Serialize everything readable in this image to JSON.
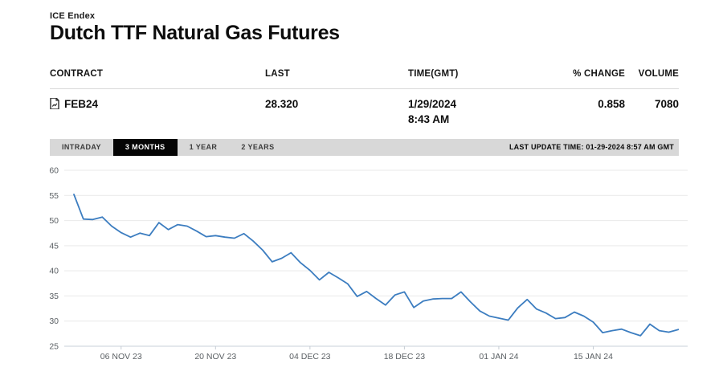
{
  "header": {
    "exchange": "ICE Endex",
    "title": "Dutch TTF Natural Gas Futures"
  },
  "table": {
    "columns": [
      "CONTRACT",
      "LAST",
      "TIME(GMT)",
      "% CHANGE",
      "VOLUME"
    ],
    "row": {
      "contract": "FEB24",
      "last": "28.320",
      "date": "1/29/2024",
      "time": "8:43 AM",
      "pct_change": "0.858",
      "volume": "7080"
    }
  },
  "tabs": {
    "items": [
      {
        "label": "INTRADAY",
        "selected": false
      },
      {
        "label": "3 MONTHS",
        "selected": true
      },
      {
        "label": "1 YEAR",
        "selected": false
      },
      {
        "label": "2 YEARS",
        "selected": false
      }
    ],
    "last_update": "LAST UPDATE TIME: 01-29-2024 8:57 AM GMT"
  },
  "chart_data": {
    "type": "line",
    "title": "Dutch TTF Natural Gas Futures FEB24 — 3 months, daily settlement",
    "ylim": [
      25,
      60
    ],
    "y_ticks": [
      60,
      55,
      50,
      45,
      40,
      35,
      30,
      25
    ],
    "x_tick_labels": [
      "06 NOV 23",
      "20 NOV 23",
      "04 DEC 23",
      "18 DEC 23",
      "01 JAN 24",
      "15 JAN 24"
    ],
    "x_tick_indices": [
      5,
      15,
      25,
      35,
      45,
      55
    ],
    "grid": true,
    "legend_position": "none",
    "line_color": "#3c7dc0",
    "values": [
      55.2,
      50.3,
      50.2,
      50.7,
      48.9,
      47.6,
      46.7,
      47.5,
      47.0,
      49.6,
      48.2,
      49.2,
      48.9,
      47.9,
      46.8,
      47.0,
      46.7,
      46.5,
      47.4,
      45.9,
      44.1,
      41.8,
      42.5,
      43.6,
      41.6,
      40.1,
      38.2,
      39.7,
      38.6,
      37.4,
      34.9,
      35.9,
      34.5,
      33.2,
      35.2,
      35.8,
      32.7,
      34.0,
      34.4,
      34.5,
      34.5,
      35.8,
      33.8,
      32.0,
      31.0,
      30.6,
      30.2,
      32.6,
      34.3,
      32.4,
      31.6,
      30.5,
      30.7,
      31.8,
      31.0,
      29.8,
      27.7,
      28.1,
      28.4,
      27.7,
      27.1,
      29.4,
      28.1,
      27.8,
      28.32
    ]
  }
}
